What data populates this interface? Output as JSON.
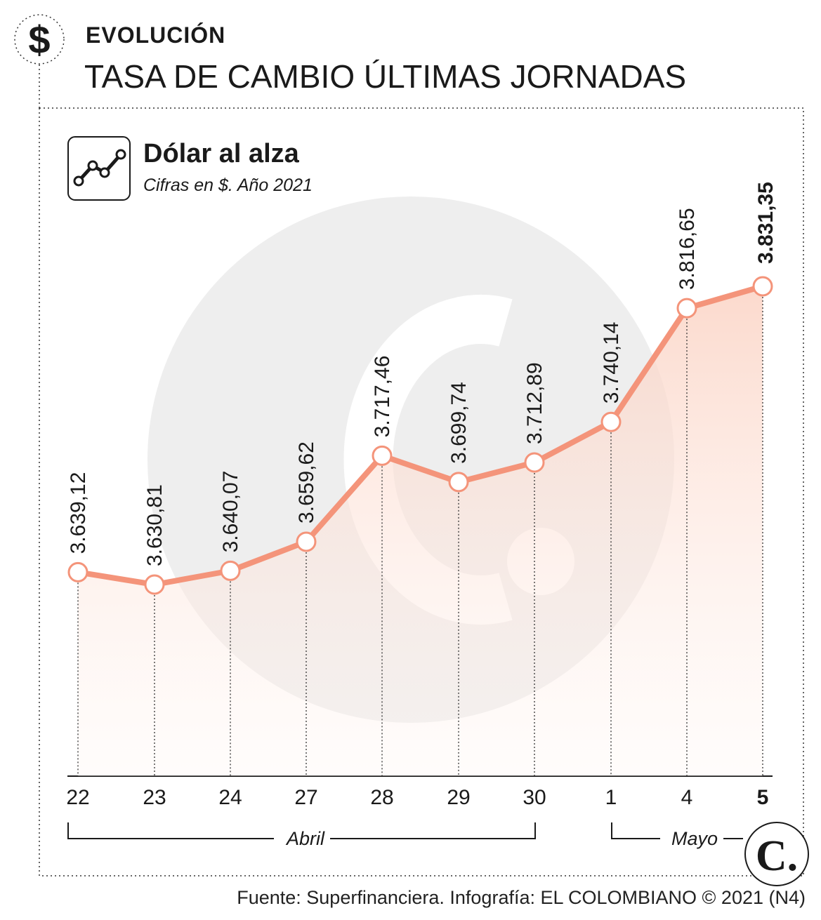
{
  "header": {
    "kicker": "EVOLUCIÓN",
    "title": "TASA DE CAMBIO ÚLTIMAS JORNADAS",
    "icon": "dollar-icon"
  },
  "colors": {
    "line": "#f4947a",
    "marker_fill": "#ffffff",
    "area_top": "#fde3d8",
    "watermark": "#eeeeee",
    "text": "#1a1a1a"
  },
  "chart_data": {
    "type": "line",
    "title": "Dólar al alza",
    "subtitle": "Cifras en $. Año 2021",
    "categories": [
      "22",
      "23",
      "24",
      "27",
      "28",
      "29",
      "30",
      "1",
      "4",
      "5"
    ],
    "values": [
      3639.12,
      3630.81,
      3640.07,
      3659.62,
      3717.46,
      3699.74,
      3712.89,
      3740.14,
      3816.65,
      3831.35
    ],
    "value_labels": [
      "3.639,12",
      "3.630,81",
      "3.640,07",
      "3.659,62",
      "3.717,46",
      "3.699,74",
      "3.712,89",
      "3.740,14",
      "3.816,65",
      "3.831,35"
    ],
    "highlight_index": 9,
    "months": [
      {
        "label": "Abril",
        "from": 0,
        "to": 6
      },
      {
        "label": "Mayo",
        "from": 7,
        "to": 9
      }
    ],
    "grid": false,
    "legend": "none"
  },
  "logo": {
    "letter": "C."
  },
  "footer": {
    "source": "Fuente: Superfinanciera. Infografía: EL COLOMBIANO © 2021 (N4)"
  }
}
